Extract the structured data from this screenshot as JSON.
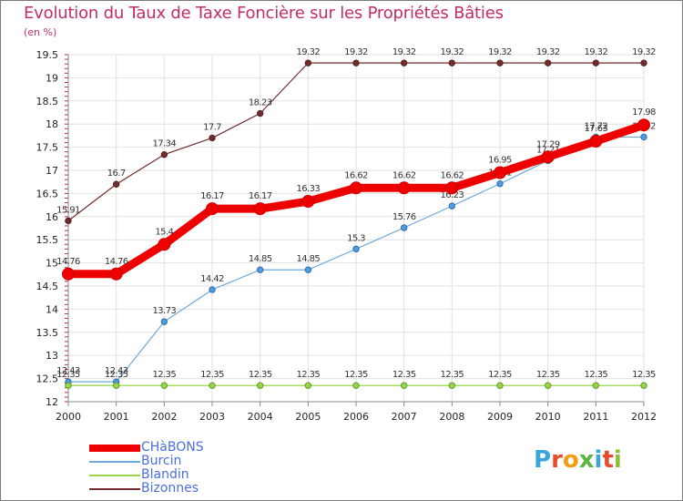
{
  "header": {
    "title": "Evolution du Taux de Taxe Foncière sur les Propriétés Bâties",
    "subtitle": "(en %)"
  },
  "logo": {
    "text": "Proxiti",
    "letters": [
      "P",
      "r",
      "o",
      "x",
      "i",
      "t",
      "i"
    ],
    "colors": [
      "#3aa5dc",
      "#e84c2b",
      "#f39c12",
      "#5bb544",
      "#3aa5dc",
      "#e84c2b",
      "#8fbf3a"
    ]
  },
  "chart_data": {
    "type": "line",
    "title": "Evolution du Taux de Taxe Foncière sur les Propriétés Bâties",
    "ylabel": "(en %)",
    "xlabel": "",
    "x": [
      "2000",
      "2001",
      "2002",
      "2003",
      "2004",
      "2005",
      "2006",
      "2007",
      "2008",
      "2009",
      "2010",
      "2011",
      "2012"
    ],
    "ylim": [
      12,
      19.5
    ],
    "yticks": [
      "12",
      "12.5",
      "13",
      "13.5",
      "14",
      "14.5",
      "15",
      "15.5",
      "16",
      "16.5",
      "17",
      "17.5",
      "18",
      "18.5",
      "19",
      "19.5"
    ],
    "grid": true,
    "legend_position": "bottom-left",
    "series": [
      {
        "name": "Bizonnes",
        "color": "#722c2c",
        "values": [
          15.91,
          16.7,
          17.34,
          17.7,
          18.23,
          19.32,
          19.32,
          19.32,
          19.32,
          19.32,
          19.32,
          19.32,
          19.32
        ],
        "labels": [
          "15.91",
          "16.7",
          "17.34",
          "17.7",
          "18.23",
          "19.32",
          "19.32",
          "19.32",
          "19.32",
          "19.32",
          "19.32",
          "19.32",
          "19.32"
        ]
      },
      {
        "name": "Burcin",
        "color": "#6fa8dc",
        "values": [
          12.43,
          12.43,
          13.73,
          14.42,
          14.85,
          14.85,
          15.3,
          15.76,
          16.23,
          16.71,
          17.21,
          17.72,
          17.72
        ],
        "labels": [
          "12.43",
          "12.43",
          "13.73",
          "14.42",
          "14.85",
          "14.85",
          "15.3",
          "15.76",
          "16.23",
          "16.71",
          "17.21",
          "17.72",
          "17.72"
        ]
      },
      {
        "name": "Blandin",
        "color": "#9ad44a",
        "values": [
          12.35,
          12.35,
          12.35,
          12.35,
          12.35,
          12.35,
          12.35,
          12.35,
          12.35,
          12.35,
          12.35,
          12.35,
          12.35
        ],
        "labels": [
          "12.35",
          "12.35",
          "12.35",
          "12.35",
          "12.35",
          "12.35",
          "12.35",
          "12.35",
          "12.35",
          "12.35",
          "12.35",
          "12.35",
          "12.35"
        ]
      },
      {
        "name": "CHàBONS",
        "color": "#ee0000",
        "values": [
          14.76,
          14.76,
          15.4,
          16.17,
          16.17,
          16.33,
          16.62,
          16.62,
          16.62,
          16.95,
          17.29,
          17.63,
          17.98
        ],
        "labels": [
          "14.76",
          "14.76",
          "15.4",
          "16.17",
          "16.17",
          "16.33",
          "16.62",
          "16.62",
          "16.62",
          "16.95",
          "17.29",
          "17.63",
          "17.98"
        ]
      }
    ],
    "legend": [
      "CHàBONS",
      "Burcin",
      "Blandin",
      "Bizonnes"
    ]
  }
}
